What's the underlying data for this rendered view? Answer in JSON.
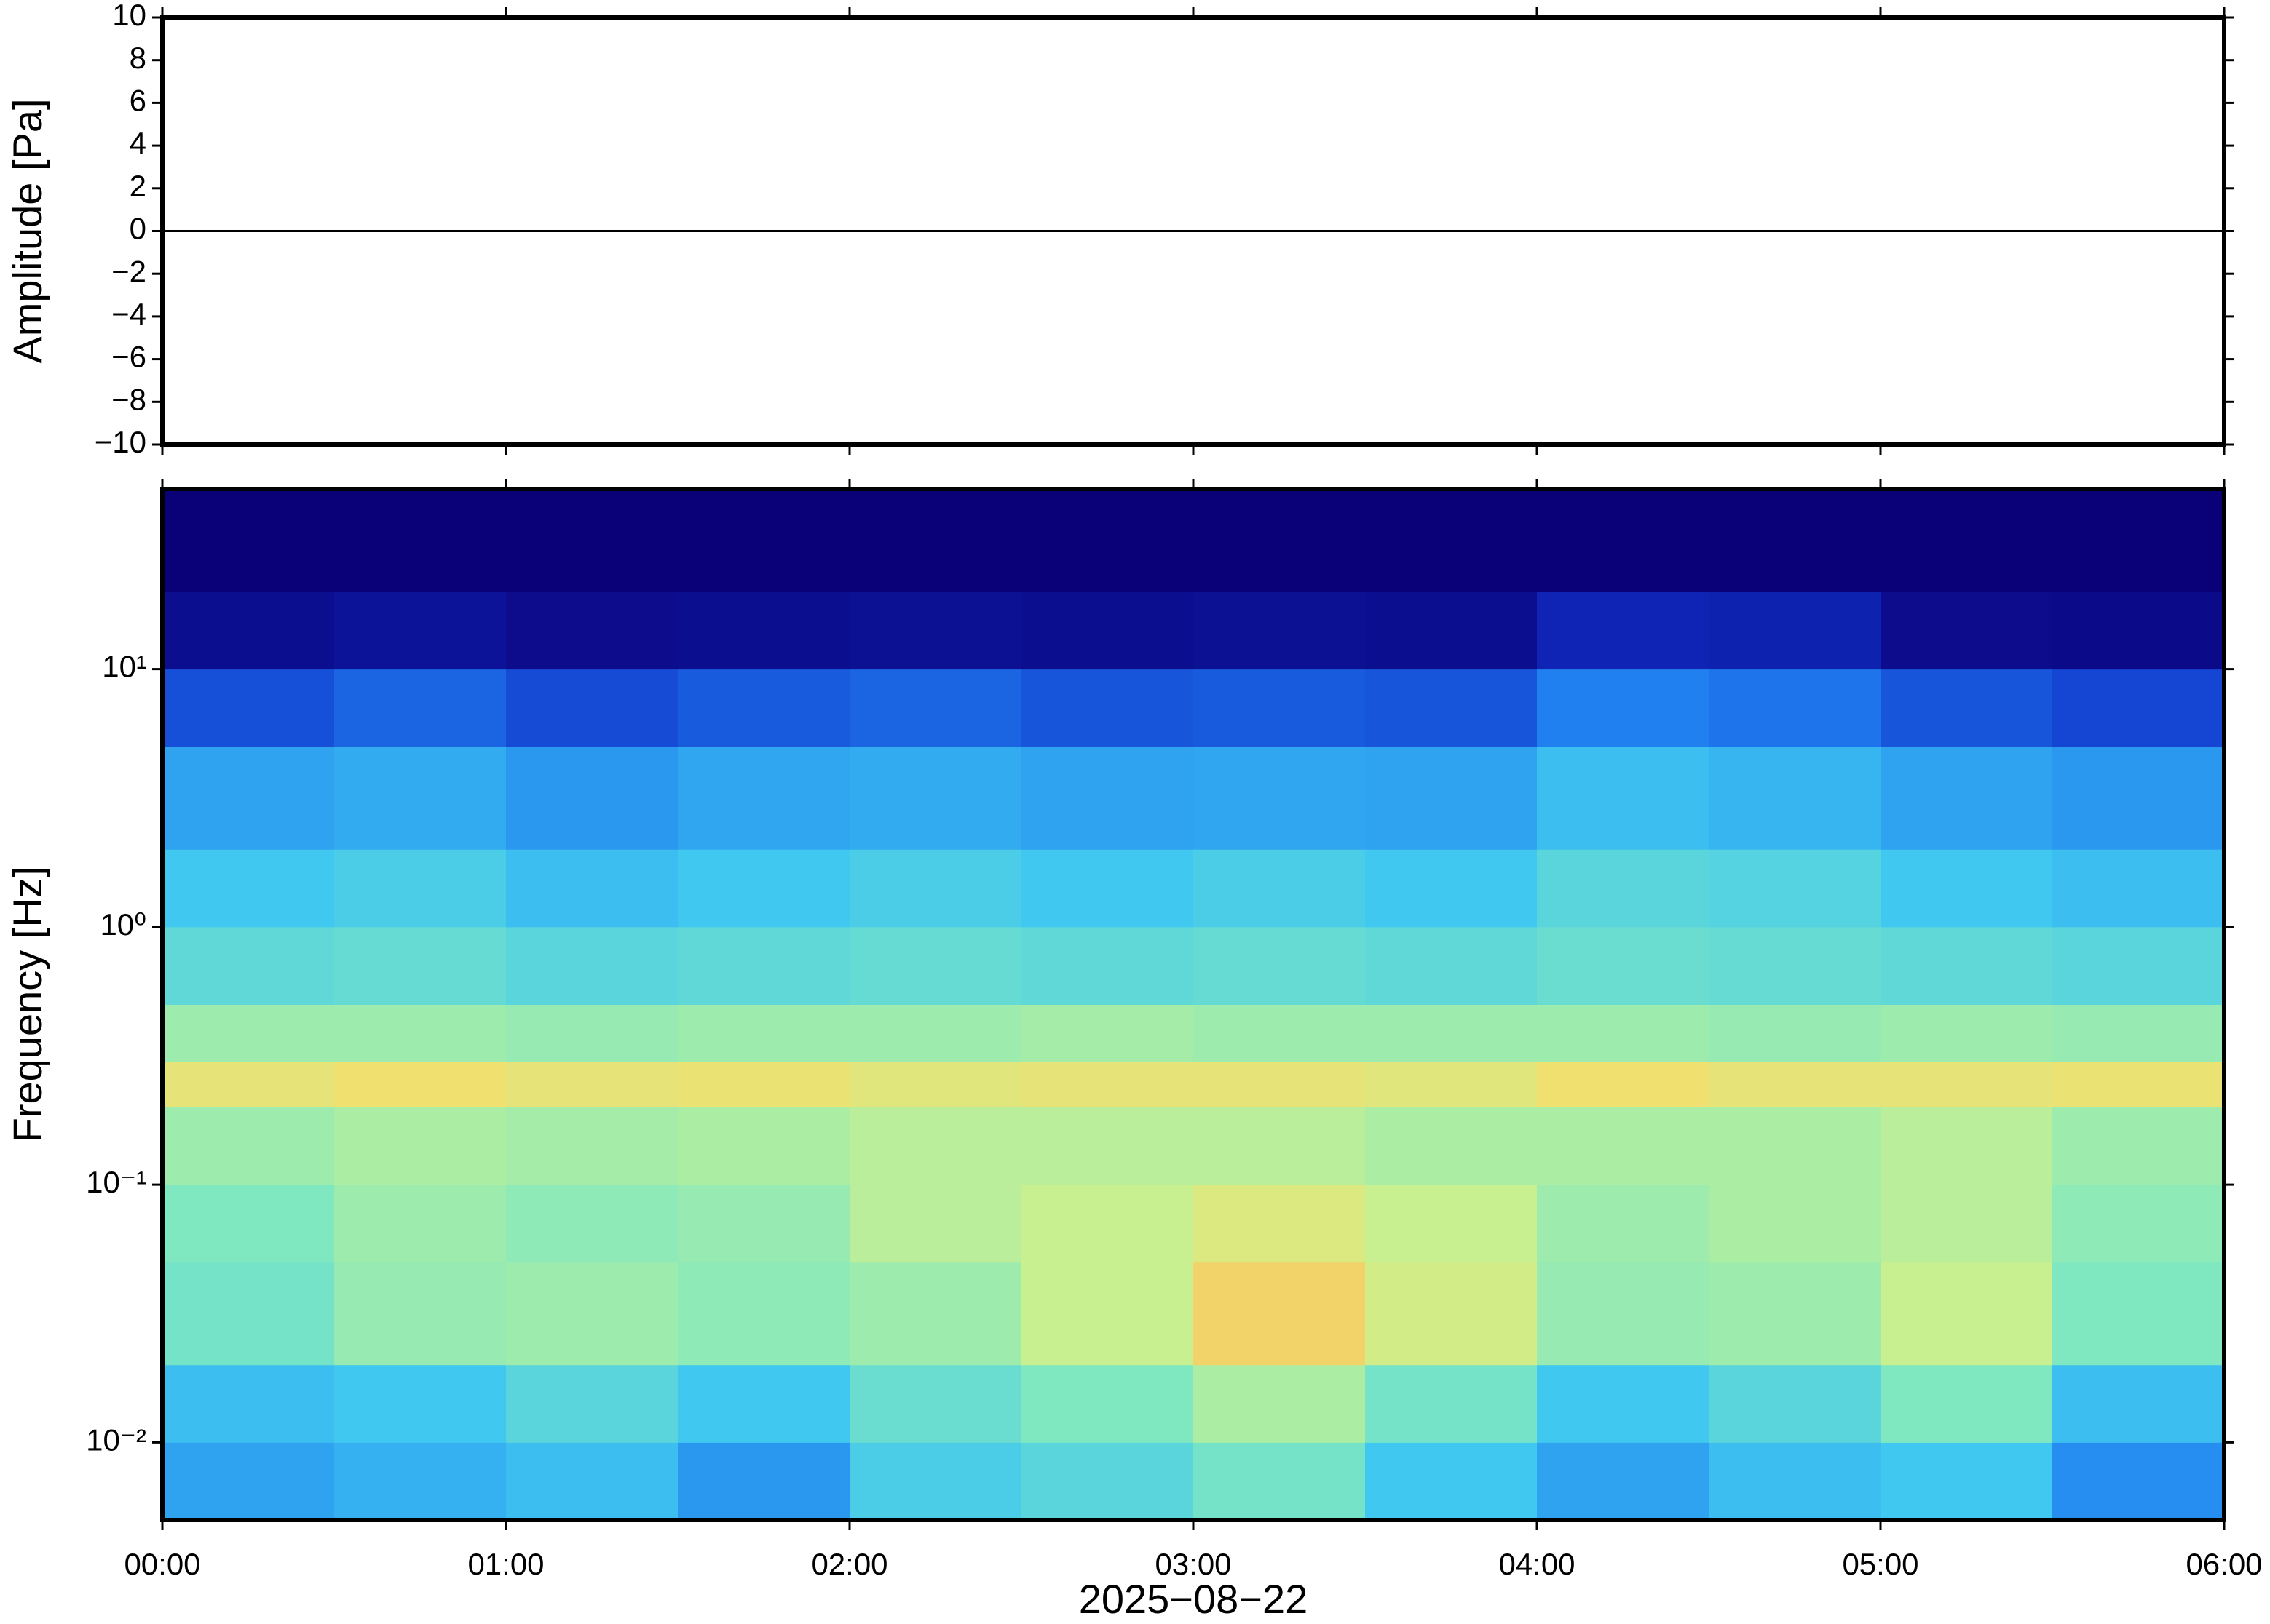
{
  "chart_data": [
    {
      "type": "line",
      "ylabel": "Amplitude [Pa]",
      "x": [
        0,
        0.5,
        1,
        1.5,
        2,
        2.5,
        3,
        3.5,
        4,
        4.5,
        5,
        5.5,
        6
      ],
      "series": [
        {
          "color": "#000000",
          "values": [
            0,
            0,
            0,
            0,
            0,
            0,
            0,
            0,
            0,
            0,
            0,
            0,
            0
          ]
        }
      ],
      "xlim": [
        0,
        6
      ],
      "ylim": [
        -10,
        10
      ],
      "yticks": [
        {
          "value": -10,
          "label": "−10"
        },
        {
          "value": -8,
          "label": "−8"
        },
        {
          "value": -6,
          "label": "−6"
        },
        {
          "value": -4,
          "label": "−4"
        },
        {
          "value": -2,
          "label": "−2"
        },
        0,
        2,
        4,
        6,
        8,
        10
      ]
    },
    {
      "type": "heatmap",
      "ylabel": "Frequency [Hz]",
      "xlabel": "2025−08−22",
      "xlim": [
        0,
        6
      ],
      "ylim": [
        0.005,
        50
      ],
      "log_y": true,
      "xticks": [
        {
          "value": 0,
          "label": "00:00"
        },
        {
          "value": 1,
          "label": "01:00"
        },
        {
          "value": 2,
          "label": "02:00"
        },
        {
          "value": 3,
          "label": "03:00"
        },
        {
          "value": 4,
          "label": "04:00"
        },
        {
          "value": 5,
          "label": "05:00"
        },
        {
          "value": 6,
          "label": "06:00"
        }
      ],
      "yticks": [
        {
          "value": 0.01,
          "label": "10⁻²"
        },
        {
          "value": 0.1,
          "label": "10⁻¹"
        },
        {
          "value": 1,
          "label": "10⁰"
        },
        {
          "value": 10,
          "label": "10¹"
        }
      ],
      "x_edges": [
        0,
        0.5,
        1,
        1.5,
        2,
        2.5,
        3,
        3.5,
        4,
        4.5,
        5,
        5.5,
        6
      ],
      "y_edges": [
        0.005,
        0.01,
        0.02,
        0.05,
        0.1,
        0.2,
        0.3,
        0.5,
        1,
        2,
        5,
        10,
        20,
        50
      ],
      "zlim": [
        0,
        1
      ],
      "colormap": {
        "stops": [
          0,
          0.2,
          0.35,
          0.5,
          0.62,
          0.72,
          0.8,
          0.9,
          1
        ],
        "colors": [
          "#0a0078",
          "#1030c8",
          "#2080f0",
          "#40c8f0",
          "#80e8c0",
          "#c8f090",
          "#f0e070",
          "#f8a050",
          "#f06030"
        ]
      },
      "z": [
        [
          0.42,
          0.45,
          0.48,
          0.4,
          0.52,
          0.55,
          0.6,
          0.5,
          0.42,
          0.48,
          0.5,
          0.38
        ],
        [
          0.48,
          0.5,
          0.55,
          0.5,
          0.58,
          0.62,
          0.68,
          0.6,
          0.5,
          0.55,
          0.62,
          0.48
        ],
        [
          0.6,
          0.65,
          0.66,
          0.64,
          0.66,
          0.72,
          0.82,
          0.74,
          0.65,
          0.66,
          0.72,
          0.62
        ],
        [
          0.62,
          0.66,
          0.64,
          0.65,
          0.7,
          0.72,
          0.76,
          0.72,
          0.66,
          0.68,
          0.7,
          0.64
        ],
        [
          0.66,
          0.68,
          0.67,
          0.68,
          0.7,
          0.7,
          0.7,
          0.68,
          0.68,
          0.68,
          0.7,
          0.66
        ],
        [
          0.78,
          0.8,
          0.78,
          0.79,
          0.77,
          0.78,
          0.78,
          0.77,
          0.8,
          0.78,
          0.78,
          0.79
        ],
        [
          0.66,
          0.66,
          0.65,
          0.66,
          0.66,
          0.67,
          0.66,
          0.66,
          0.66,
          0.65,
          0.66,
          0.65
        ],
        [
          0.56,
          0.57,
          0.55,
          0.56,
          0.57,
          0.56,
          0.57,
          0.56,
          0.58,
          0.57,
          0.56,
          0.55
        ],
        [
          0.5,
          0.52,
          0.48,
          0.5,
          0.52,
          0.5,
          0.52,
          0.5,
          0.55,
          0.54,
          0.5,
          0.48
        ],
        [
          0.42,
          0.44,
          0.4,
          0.43,
          0.44,
          0.42,
          0.43,
          0.42,
          0.48,
          0.46,
          0.42,
          0.4
        ],
        [
          0.26,
          0.3,
          0.25,
          0.28,
          0.3,
          0.27,
          0.28,
          0.27,
          0.35,
          0.33,
          0.27,
          0.24
        ],
        [
          0.06,
          0.08,
          0.05,
          0.06,
          0.07,
          0.06,
          0.07,
          0.06,
          0.15,
          0.14,
          0.05,
          0.04
        ],
        [
          0,
          0,
          0,
          0,
          0,
          0,
          0,
          0,
          0,
          0,
          0,
          0
        ]
      ]
    }
  ]
}
